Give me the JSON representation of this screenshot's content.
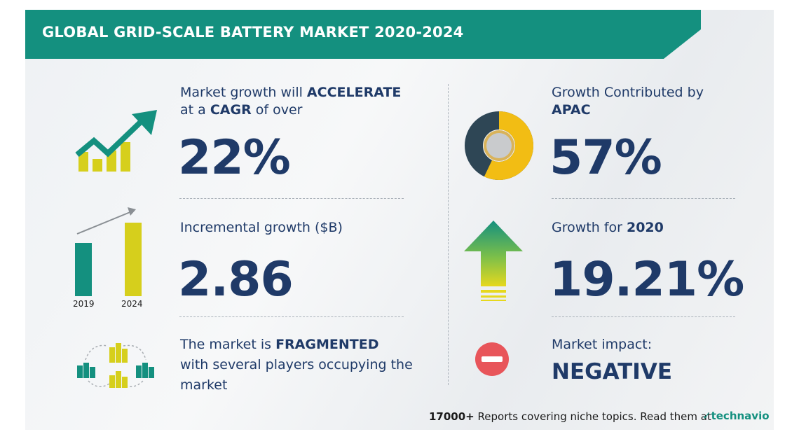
{
  "header": {
    "title": "GLOBAL GRID-SCALE BATTERY MARKET 2020-2024"
  },
  "cagr": {
    "line1_pre": "Market growth will ",
    "line1_bold": "ACCELERATE",
    "line2_pre": "at a ",
    "line2_bold": "CAGR",
    "line2_post": " of over",
    "value": "22%"
  },
  "incremental": {
    "label": "Incremental growth ($B)",
    "value": "2.86",
    "year_start": "2019",
    "year_end": "2024"
  },
  "fragmented": {
    "line1_pre": "The market is ",
    "line1_bold": "FRAGMENTED",
    "line2": "with several players occupying the",
    "line3": "market"
  },
  "apac": {
    "line1": "Growth Contributed by",
    "line2": "APAC",
    "value": "57%"
  },
  "growth_2020": {
    "label_pre": "Growth for ",
    "label_bold": "2020",
    "value": "19.21%"
  },
  "impact": {
    "label": "Market impact:",
    "value": "NEGATIVE"
  },
  "footer": {
    "count": "17000+",
    "text": " Reports covering niche topics. Read them at",
    "brand": "technavio"
  },
  "colors": {
    "teal": "#14907f",
    "navy": "#1f3a68",
    "yellow": "#d6cf1c",
    "red": "#e8555a"
  }
}
